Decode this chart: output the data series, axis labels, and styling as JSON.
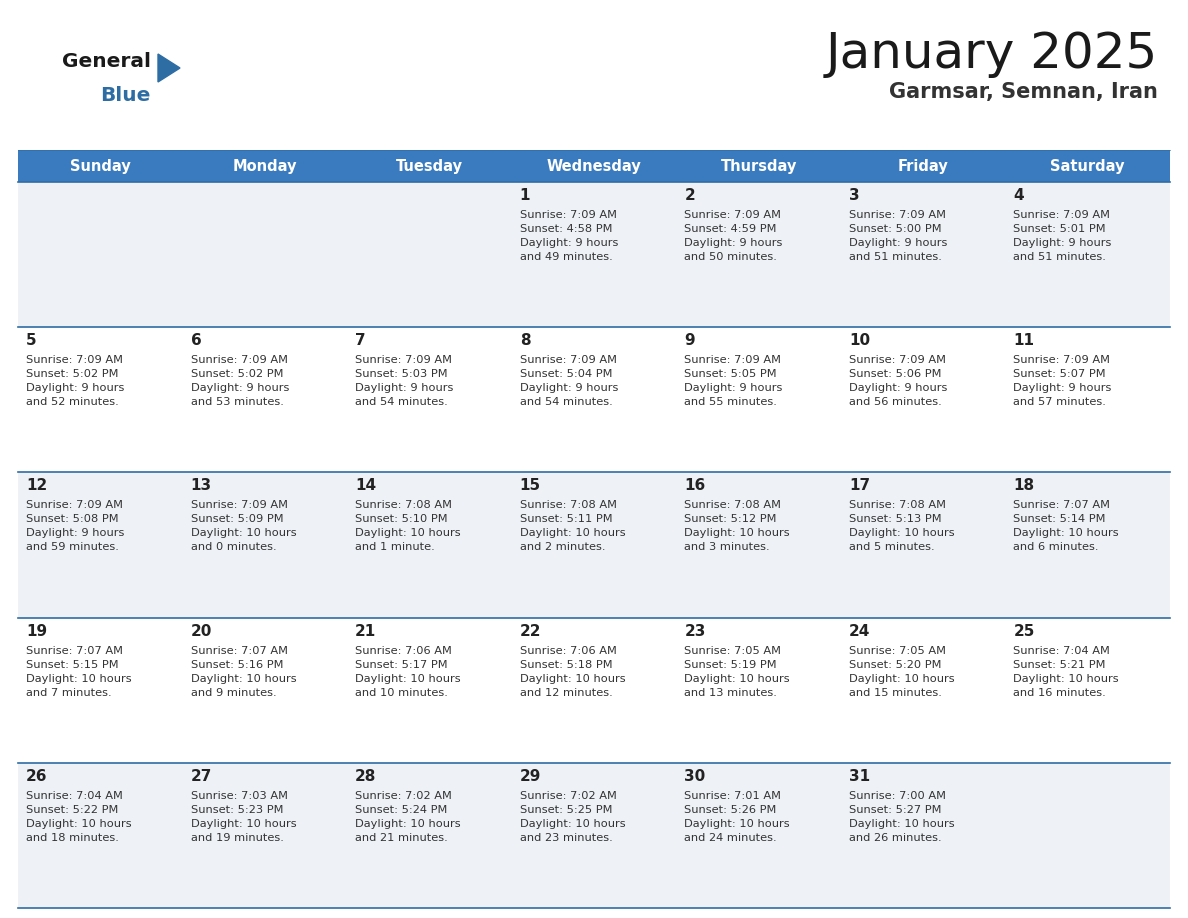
{
  "title": "January 2025",
  "subtitle": "Garmsar, Semnan, Iran",
  "days_of_week": [
    "Sunday",
    "Monday",
    "Tuesday",
    "Wednesday",
    "Thursday",
    "Friday",
    "Saturday"
  ],
  "header_bg": "#3a7bbf",
  "header_text": "#ffffff",
  "cell_bg_odd": "#eef2f7",
  "cell_bg_even": "#ffffff",
  "divider_color": "#2e6da4",
  "text_color": "#333333",
  "day_num_color": "#222222",
  "title_color": "#1a1a1a",
  "subtitle_color": "#333333",
  "logo_general_color": "#1a1a1a",
  "logo_blue_color": "#2e6da4",
  "logo_triangle_color": "#2e6da4",
  "calendar_data": [
    [
      {
        "day": null,
        "info": null
      },
      {
        "day": null,
        "info": null
      },
      {
        "day": null,
        "info": null
      },
      {
        "day": 1,
        "info": "Sunrise: 7:09 AM\nSunset: 4:58 PM\nDaylight: 9 hours\nand 49 minutes."
      },
      {
        "day": 2,
        "info": "Sunrise: 7:09 AM\nSunset: 4:59 PM\nDaylight: 9 hours\nand 50 minutes."
      },
      {
        "day": 3,
        "info": "Sunrise: 7:09 AM\nSunset: 5:00 PM\nDaylight: 9 hours\nand 51 minutes."
      },
      {
        "day": 4,
        "info": "Sunrise: 7:09 AM\nSunset: 5:01 PM\nDaylight: 9 hours\nand 51 minutes."
      }
    ],
    [
      {
        "day": 5,
        "info": "Sunrise: 7:09 AM\nSunset: 5:02 PM\nDaylight: 9 hours\nand 52 minutes."
      },
      {
        "day": 6,
        "info": "Sunrise: 7:09 AM\nSunset: 5:02 PM\nDaylight: 9 hours\nand 53 minutes."
      },
      {
        "day": 7,
        "info": "Sunrise: 7:09 AM\nSunset: 5:03 PM\nDaylight: 9 hours\nand 54 minutes."
      },
      {
        "day": 8,
        "info": "Sunrise: 7:09 AM\nSunset: 5:04 PM\nDaylight: 9 hours\nand 54 minutes."
      },
      {
        "day": 9,
        "info": "Sunrise: 7:09 AM\nSunset: 5:05 PM\nDaylight: 9 hours\nand 55 minutes."
      },
      {
        "day": 10,
        "info": "Sunrise: 7:09 AM\nSunset: 5:06 PM\nDaylight: 9 hours\nand 56 minutes."
      },
      {
        "day": 11,
        "info": "Sunrise: 7:09 AM\nSunset: 5:07 PM\nDaylight: 9 hours\nand 57 minutes."
      }
    ],
    [
      {
        "day": 12,
        "info": "Sunrise: 7:09 AM\nSunset: 5:08 PM\nDaylight: 9 hours\nand 59 minutes."
      },
      {
        "day": 13,
        "info": "Sunrise: 7:09 AM\nSunset: 5:09 PM\nDaylight: 10 hours\nand 0 minutes."
      },
      {
        "day": 14,
        "info": "Sunrise: 7:08 AM\nSunset: 5:10 PM\nDaylight: 10 hours\nand 1 minute."
      },
      {
        "day": 15,
        "info": "Sunrise: 7:08 AM\nSunset: 5:11 PM\nDaylight: 10 hours\nand 2 minutes."
      },
      {
        "day": 16,
        "info": "Sunrise: 7:08 AM\nSunset: 5:12 PM\nDaylight: 10 hours\nand 3 minutes."
      },
      {
        "day": 17,
        "info": "Sunrise: 7:08 AM\nSunset: 5:13 PM\nDaylight: 10 hours\nand 5 minutes."
      },
      {
        "day": 18,
        "info": "Sunrise: 7:07 AM\nSunset: 5:14 PM\nDaylight: 10 hours\nand 6 minutes."
      }
    ],
    [
      {
        "day": 19,
        "info": "Sunrise: 7:07 AM\nSunset: 5:15 PM\nDaylight: 10 hours\nand 7 minutes."
      },
      {
        "day": 20,
        "info": "Sunrise: 7:07 AM\nSunset: 5:16 PM\nDaylight: 10 hours\nand 9 minutes."
      },
      {
        "day": 21,
        "info": "Sunrise: 7:06 AM\nSunset: 5:17 PM\nDaylight: 10 hours\nand 10 minutes."
      },
      {
        "day": 22,
        "info": "Sunrise: 7:06 AM\nSunset: 5:18 PM\nDaylight: 10 hours\nand 12 minutes."
      },
      {
        "day": 23,
        "info": "Sunrise: 7:05 AM\nSunset: 5:19 PM\nDaylight: 10 hours\nand 13 minutes."
      },
      {
        "day": 24,
        "info": "Sunrise: 7:05 AM\nSunset: 5:20 PM\nDaylight: 10 hours\nand 15 minutes."
      },
      {
        "day": 25,
        "info": "Sunrise: 7:04 AM\nSunset: 5:21 PM\nDaylight: 10 hours\nand 16 minutes."
      }
    ],
    [
      {
        "day": 26,
        "info": "Sunrise: 7:04 AM\nSunset: 5:22 PM\nDaylight: 10 hours\nand 18 minutes."
      },
      {
        "day": 27,
        "info": "Sunrise: 7:03 AM\nSunset: 5:23 PM\nDaylight: 10 hours\nand 19 minutes."
      },
      {
        "day": 28,
        "info": "Sunrise: 7:02 AM\nSunset: 5:24 PM\nDaylight: 10 hours\nand 21 minutes."
      },
      {
        "day": 29,
        "info": "Sunrise: 7:02 AM\nSunset: 5:25 PM\nDaylight: 10 hours\nand 23 minutes."
      },
      {
        "day": 30,
        "info": "Sunrise: 7:01 AM\nSunset: 5:26 PM\nDaylight: 10 hours\nand 24 minutes."
      },
      {
        "day": 31,
        "info": "Sunrise: 7:00 AM\nSunset: 5:27 PM\nDaylight: 10 hours\nand 26 minutes."
      },
      {
        "day": null,
        "info": null
      }
    ]
  ]
}
